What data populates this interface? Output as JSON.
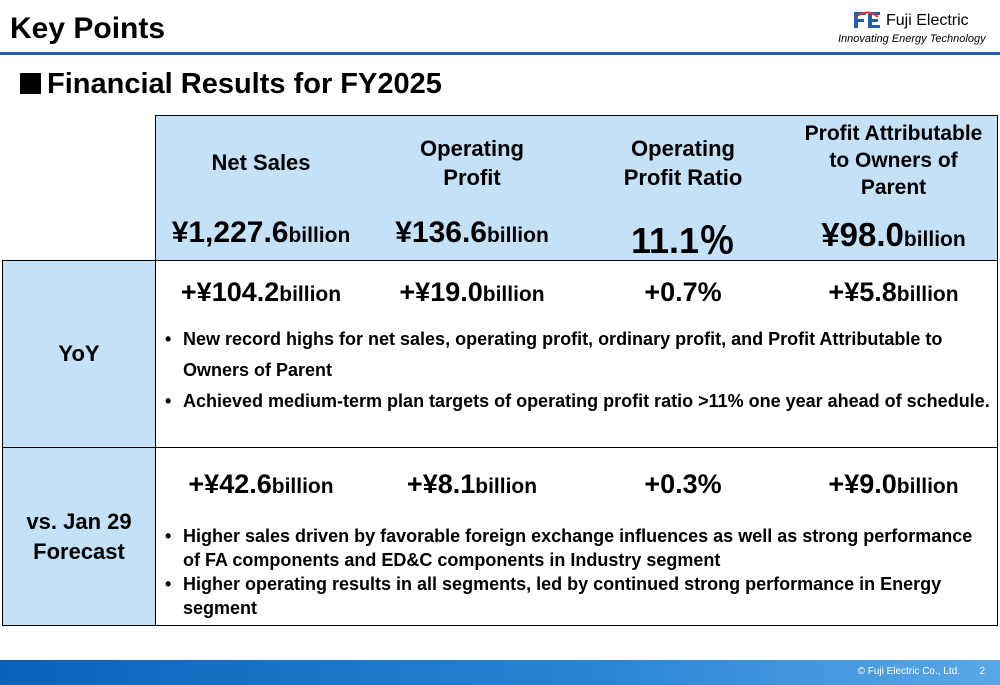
{
  "header": {
    "title": "Key Points",
    "logo_name": "Fuji Electric",
    "logo_tagline": "Innovating Energy Technology",
    "accent_color": "#1f5fae"
  },
  "section": {
    "heading": "Financial Results for FY2025"
  },
  "metrics": [
    {
      "label": "Net Sales",
      "value": "¥1,227.6",
      "unit": "billion"
    },
    {
      "label": "Operating Profit",
      "value": "¥136.6",
      "unit": "billion"
    },
    {
      "label": "Operating Profit Ratio",
      "value": "11.1％",
      "unit": ""
    },
    {
      "label": "Profit Attributable to Owners of Parent",
      "value": "¥98.0",
      "unit": "billion"
    }
  ],
  "rows": [
    {
      "label": "YoY",
      "deltas": [
        {
          "value": "+¥104.2",
          "unit": "billion"
        },
        {
          "value": "+¥19.0",
          "unit": "billion"
        },
        {
          "value": "+0.7%",
          "unit": ""
        },
        {
          "value": "+¥5.8",
          "unit": "billion"
        }
      ],
      "bullets": [
        "New record highs for net sales, operating profit, ordinary profit, and Profit Attributable to Owners of Parent",
        "Achieved medium-term plan targets of operating profit ratio >11% one year ahead of schedule."
      ]
    },
    {
      "label": "vs. Jan 29 Forecast",
      "deltas": [
        {
          "value": "+¥42.6",
          "unit": "billion"
        },
        {
          "value": "+¥8.1",
          "unit": "billion"
        },
        {
          "value": "+0.3%",
          "unit": ""
        },
        {
          "value": "+¥9.0",
          "unit": "billion"
        }
      ],
      "bullets": [
        "Higher sales driven by favorable foreign exchange influences as well as strong performance of FA components and ED&C components in Industry segment",
        "Higher operating results in all segments, led by continued strong performance in Energy segment"
      ]
    }
  ],
  "footer": {
    "copyright": "© Fuji Electric Co., Ltd.",
    "page_number": "2"
  },
  "colors": {
    "panel_fill": "#c5e1f8",
    "footer_start": "#0a62b9",
    "footer_end": "#5aa8e6"
  }
}
